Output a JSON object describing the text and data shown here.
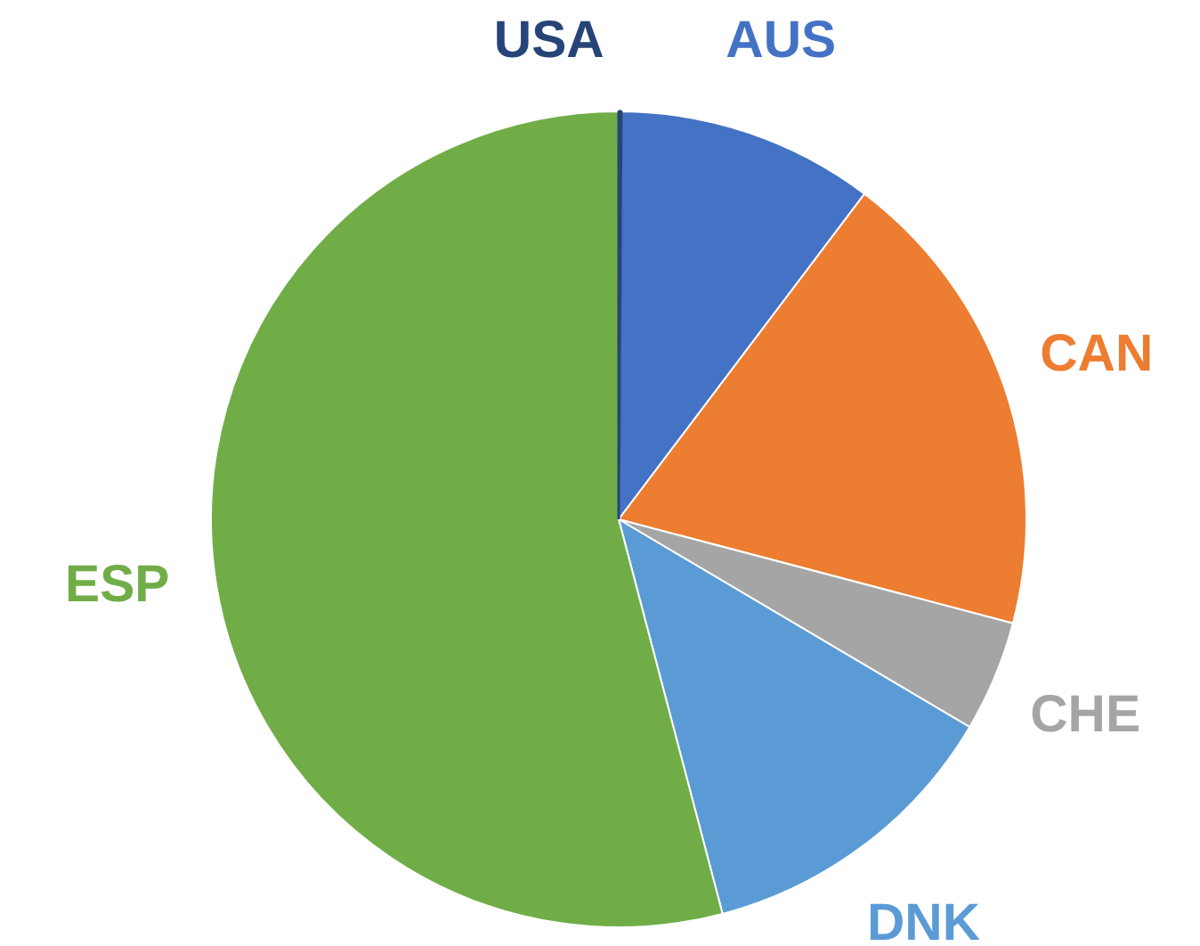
{
  "chart_data": {
    "type": "pie",
    "categories": [
      "USA",
      "AUS",
      "CAN",
      "CHE",
      "DNK",
      "ESP"
    ],
    "values": [
      0.1,
      10.2,
      18.8,
      4.4,
      12.4,
      54.1
    ],
    "colors": [
      "#264478",
      "#4472c4",
      "#ed7d31",
      "#a5a5a5",
      "#5b9bd5",
      "#70ad47"
    ]
  }
}
